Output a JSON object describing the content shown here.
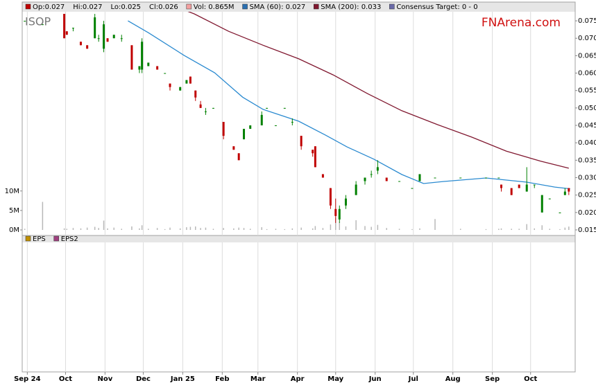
{
  "chart_data": {
    "type": "candlestick",
    "ticker": "ISOP",
    "brand": "FNArena.com",
    "legend": [
      {
        "label": "Op:0.027",
        "color": "#c00000"
      },
      {
        "label": "Hi:0.027"
      },
      {
        "label": "Lo:0.025"
      },
      {
        "label": "Cl:0.026"
      },
      {
        "label": "Vol: 0.865M",
        "color": "#f4a0a0"
      },
      {
        "label": "SMA (60): 0.027",
        "color": "#2a6fb0"
      },
      {
        "label": "SMA (200): 0.033",
        "color": "#801830"
      },
      {
        "label": "Consensus Target: 0 - 0",
        "color": "#6a6aa8"
      }
    ],
    "lower_legend": [
      {
        "label": "EPS",
        "color": "#c09000"
      },
      {
        "label": "EPS2",
        "color": "#a04080"
      }
    ],
    "up_color": "#008000",
    "down_color": "#c00000",
    "volume_color": "#b8b8b8",
    "x": [
      -2,
      12,
      29,
      31,
      36,
      42,
      47,
      53,
      56,
      60,
      63,
      68,
      74,
      82,
      88,
      90,
      95,
      102,
      108,
      112,
      120,
      125,
      128,
      132,
      136,
      140,
      146,
      154,
      162,
      166,
      170,
      175,
      184,
      188,
      195,
      202,
      208,
      215,
      224,
      226,
      232,
      238,
      242,
      245,
      250,
      258,
      265,
      270,
      275,
      282,
      292,
      302,
      308,
      320,
      340,
      360,
      370,
      372,
      380,
      386,
      392,
      398,
      404,
      410,
      418,
      422,
      425
    ],
    "open": [
      0.075,
      0.074,
      0.077,
      0.072,
      0.073,
      0.069,
      0.068,
      0.07,
      0.07,
      0.067,
      0.07,
      0.07,
      0.07,
      0.068,
      0.061,
      0.061,
      0.062,
      0.062,
      0.06,
      0.057,
      0.055,
      0.057,
      0.059,
      0.055,
      0.051,
      0.049,
      0.05,
      0.046,
      0.039,
      0.037,
      0.041,
      0.044,
      0.045,
      0.05,
      0.045,
      0.05,
      0.046,
      0.042,
      0.038,
      0.039,
      0.031,
      0.027,
      0.021,
      0.018,
      0.022,
      0.025,
      0.029,
      0.031,
      0.032,
      0.03,
      0.029,
      0.027,
      0.029,
      0.03,
      0.03,
      0.03,
      0.03,
      0.028,
      0.027,
      0.028,
      0.026,
      0.028,
      0.02,
      0.024,
      0.02,
      0.025,
      0.027
    ],
    "high": [
      0.075,
      0.074,
      0.077,
      0.072,
      0.073,
      0.069,
      0.068,
      0.077,
      0.071,
      0.075,
      0.07,
      0.071,
      0.071,
      0.068,
      0.062,
      0.07,
      0.063,
      0.062,
      0.06,
      0.057,
      0.056,
      0.058,
      0.059,
      0.055,
      0.052,
      0.05,
      0.05,
      0.046,
      0.039,
      0.037,
      0.044,
      0.045,
      0.049,
      0.05,
      0.045,
      0.05,
      0.047,
      0.042,
      0.038,
      0.039,
      0.031,
      0.027,
      0.024,
      0.022,
      0.025,
      0.029,
      0.03,
      0.032,
      0.035,
      0.03,
      0.029,
      0.027,
      0.031,
      0.03,
      0.03,
      0.03,
      0.03,
      0.028,
      0.027,
      0.028,
      0.033,
      0.028,
      0.025,
      0.024,
      0.02,
      0.027,
      0.027
    ],
    "low": [
      0.075,
      0.074,
      0.07,
      0.071,
      0.072,
      0.068,
      0.067,
      0.07,
      0.069,
      0.066,
      0.069,
      0.07,
      0.069,
      0.061,
      0.06,
      0.06,
      0.062,
      0.061,
      0.06,
      0.055,
      0.055,
      0.057,
      0.057,
      0.052,
      0.05,
      0.048,
      0.05,
      0.041,
      0.038,
      0.035,
      0.041,
      0.044,
      0.045,
      0.05,
      0.045,
      0.05,
      0.045,
      0.038,
      0.036,
      0.033,
      0.03,
      0.021,
      0.017,
      0.017,
      0.021,
      0.025,
      0.028,
      0.03,
      0.031,
      0.029,
      0.029,
      0.027,
      0.029,
      0.03,
      0.03,
      0.03,
      0.03,
      0.026,
      0.025,
      0.027,
      0.026,
      0.027,
      0.02,
      0.024,
      0.02,
      0.025,
      0.025
    ],
    "close": [
      0.075,
      0.074,
      0.07,
      0.071,
      0.073,
      0.068,
      0.067,
      0.076,
      0.07,
      0.074,
      0.069,
      0.071,
      0.07,
      0.061,
      0.062,
      0.069,
      0.063,
      0.061,
      0.06,
      0.056,
      0.056,
      0.058,
      0.057,
      0.053,
      0.05,
      0.049,
      0.05,
      0.042,
      0.038,
      0.035,
      0.044,
      0.045,
      0.048,
      0.05,
      0.045,
      0.05,
      0.046,
      0.039,
      0.037,
      0.033,
      0.03,
      0.022,
      0.019,
      0.021,
      0.024,
      0.028,
      0.03,
      0.031,
      0.033,
      0.029,
      0.029,
      0.027,
      0.031,
      0.03,
      0.03,
      0.03,
      0.03,
      0.027,
      0.025,
      0.027,
      0.028,
      0.028,
      0.025,
      0.024,
      0.02,
      0.026,
      0.026
    ],
    "volume": [
      0.3,
      7.2,
      0.4,
      0.3,
      0.5,
      0.4,
      0.6,
      0.8,
      0.5,
      2.4,
      0.4,
      0.6,
      0.3,
      0.9,
      0.4,
      1.2,
      0.3,
      0.5,
      0.2,
      0.6,
      0.4,
      0.7,
      0.8,
      0.9,
      0.5,
      0.6,
      0.3,
      0.5,
      0.4,
      0.6,
      0.5,
      0.3,
      0.7,
      0.2,
      0.3,
      0.2,
      0.4,
      0.6,
      0.4,
      1.0,
      0.5,
      1.4,
      3.1,
      2.0,
      0.9,
      2.5,
      1.0,
      0.8,
      1.3,
      0.5,
      0.3,
      0.2,
      0.4,
      2.8,
      0.3,
      0.2,
      0.3,
      0.4,
      0.3,
      0.3,
      1.5,
      0.4,
      1.2,
      0.3,
      0.2,
      0.6,
      0.865
    ],
    "lines": [
      {
        "color": "#2a8ad0",
        "x": [
          79,
          95,
          123,
          147,
          169,
          185,
          213,
          234,
          251,
          272,
          294,
          311,
          327,
          360,
          392,
          414,
          426
        ],
        "values": [
          0.075,
          0.0716,
          0.0651,
          0.0601,
          0.0531,
          0.0496,
          0.0462,
          0.0422,
          0.0388,
          0.0353,
          0.0309,
          0.0283,
          0.0289,
          0.0299,
          0.0287,
          0.0273,
          0.0268
        ]
      },
      {
        "color": "#801830",
        "x": [
          114,
          131,
          158,
          185,
          213,
          240,
          267,
          294,
          322,
          349,
          376,
          403,
          425
        ],
        "values": [
          0.0794,
          0.077,
          0.072,
          0.068,
          0.0641,
          0.0595,
          0.0541,
          0.0492,
          0.0452,
          0.0416,
          0.0376,
          0.0347,
          0.0327
        ]
      }
    ],
    "xlim": [
      -4,
      430
    ],
    "xticks": [
      {
        "value": 0,
        "label": "Sep 24"
      },
      {
        "value": 30,
        "label": "Oct"
      },
      {
        "value": 61,
        "label": "Nov"
      },
      {
        "value": 91,
        "label": "Dec"
      },
      {
        "value": 122,
        "label": "Jan 25"
      },
      {
        "value": 153,
        "label": "Feb"
      },
      {
        "value": 181,
        "label": "Mar"
      },
      {
        "value": 212,
        "label": "Apr"
      },
      {
        "value": 242,
        "label": "May"
      },
      {
        "value": 273,
        "label": "Jun"
      },
      {
        "value": 303,
        "label": "Jul"
      },
      {
        "value": 334,
        "label": "Aug"
      },
      {
        "value": 365,
        "label": "Sep"
      },
      {
        "value": 395,
        "label": "Oct"
      }
    ],
    "ylim": [
      0.0134,
      0.0776
    ],
    "yticks": [
      0.075,
      {
        "value": 0.07,
        "label": "0.070"
      },
      0.065,
      {
        "value": 0.06,
        "label": "0.060"
      },
      0.055,
      {
        "value": 0.05,
        "label": "0.050"
      },
      0.045,
      {
        "value": 0.04,
        "label": "0.040"
      },
      0.035,
      {
        "value": 0.03,
        "label": "0.030"
      },
      0.025,
      {
        "value": 0.02,
        "label": "0.020"
      },
      0.015
    ],
    "y2lim": [
      0,
      56
    ],
    "y2ticks": [
      {
        "value": 10,
        "label": "10M"
      },
      {
        "value": 5,
        "label": "5M"
      },
      {
        "value": 0,
        "label": "0M"
      }
    ],
    "grid": "x"
  }
}
